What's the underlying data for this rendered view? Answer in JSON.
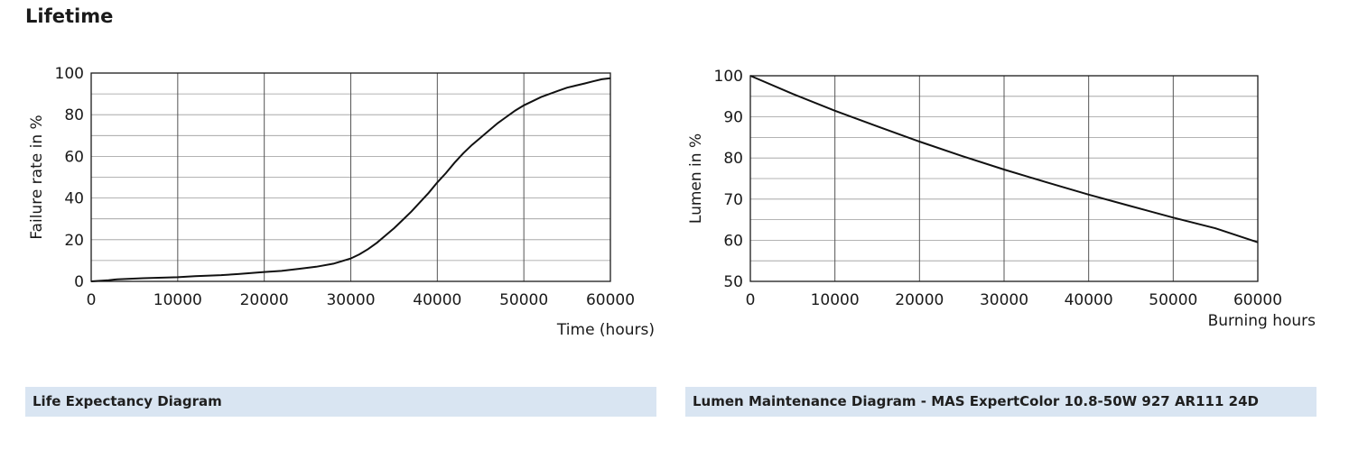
{
  "page": {
    "section_title": "Lifetime"
  },
  "captions": {
    "left": "Life Expectancy Diagram",
    "right": "Lumen Maintenance Diagram - MAS ExpertColor 10.8-50W 927 AR111 24D"
  },
  "chart_data": [
    {
      "type": "line",
      "title": "",
      "xlabel": "Time (hours)",
      "ylabel": "Failure rate in %",
      "xlim": [
        0,
        60000
      ],
      "ylim": [
        0,
        100
      ],
      "x_ticks": [
        0,
        10000,
        20000,
        30000,
        40000,
        50000,
        60000
      ],
      "y_ticks": [
        0,
        20,
        40,
        60,
        80,
        100
      ],
      "minor_y_step": 10,
      "grid": true,
      "series": [
        {
          "x": [
            0,
            2000,
            3000,
            6000,
            10000,
            12000,
            15000,
            17000,
            20000,
            22000,
            24000,
            26000,
            28000,
            30000,
            31000,
            32000,
            33000,
            34000,
            35000,
            36000,
            37000,
            38000,
            39000,
            40000,
            41000,
            42000,
            43000,
            44000,
            45000,
            46000,
            47000,
            48000,
            49000,
            50000,
            51000,
            52000,
            53000,
            54000,
            55000,
            56000,
            57000,
            58000,
            59000,
            60000
          ],
          "y": [
            0,
            0.5,
            1,
            1.5,
            2,
            2.5,
            3,
            3.5,
            4.5,
            5,
            6,
            7,
            8.5,
            11,
            13,
            15.5,
            18.5,
            22,
            25.5,
            29.5,
            33.5,
            38,
            42.5,
            47.5,
            52,
            57,
            61.5,
            65.5,
            69,
            72.5,
            76,
            79,
            82,
            84.5,
            86.5,
            88.5,
            90,
            91.5,
            93,
            94,
            95,
            96,
            97,
            97.5
          ]
        }
      ]
    },
    {
      "type": "line",
      "title": "",
      "xlabel": "Burning hours",
      "ylabel": "Lumen in %",
      "xlim": [
        0,
        60000
      ],
      "ylim": [
        50,
        100
      ],
      "x_ticks": [
        0,
        10000,
        20000,
        30000,
        40000,
        50000,
        60000
      ],
      "y_ticks": [
        50,
        60,
        70,
        80,
        90,
        100
      ],
      "minor_y_step": 5,
      "grid": true,
      "series": [
        {
          "x": [
            0,
            5000,
            10000,
            15000,
            20000,
            25000,
            30000,
            35000,
            40000,
            45000,
            50000,
            55000,
            60000
          ],
          "y": [
            100,
            95.6,
            91.5,
            87.7,
            84,
            80.5,
            77.2,
            74.1,
            71.1,
            68.3,
            65.5,
            62.9,
            59.5
          ]
        }
      ]
    }
  ]
}
